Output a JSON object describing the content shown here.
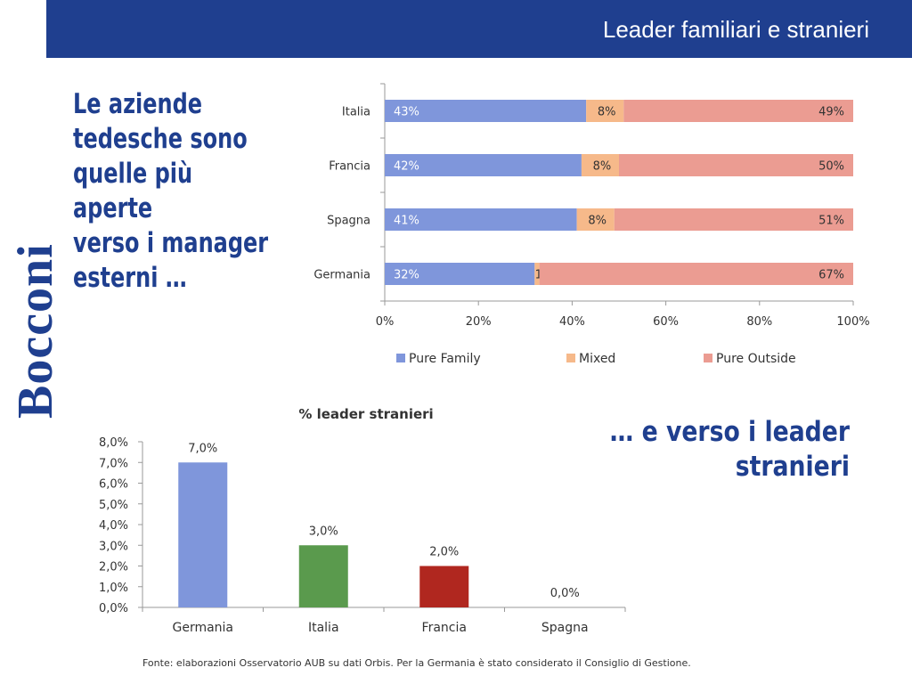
{
  "header": {
    "title": "Leader familiari e stranieri"
  },
  "brand": {
    "name": "Bocconi"
  },
  "headline": {
    "line1": "Le aziende",
    "line2": "tedesche sono",
    "line3": "quelle più aperte",
    "line4": "verso i manager",
    "line5": "esterni …"
  },
  "headline2": {
    "line1": "… e verso i leader",
    "line2": "stranieri"
  },
  "source": {
    "text": "Fonte: elaborazioni Osservatorio AUB su dati Orbis. Per la Germania è stato considerato il Consiglio di Gestione."
  },
  "colors": {
    "header": "#1f3f8f",
    "pure_family": "#7f96db",
    "mixed": "#f6b98a",
    "pure_outside": "#eb9c92",
    "germania": "#7f96db",
    "italia": "#5a9a4d",
    "francia": "#b0271f"
  },
  "chart_data": [
    {
      "type": "bar",
      "orientation": "horizontal",
      "stacked": true,
      "percent_stacked": true,
      "categories": [
        "Italia",
        "Francia",
        "Spagna",
        "Germania"
      ],
      "series": [
        {
          "name": "Pure Family",
          "values": [
            43,
            42,
            41,
            32
          ],
          "labels": [
            "43%",
            "42%",
            "41%",
            "32%"
          ]
        },
        {
          "name": "Mixed",
          "values": [
            8,
            8,
            8,
            1
          ],
          "labels": [
            "8%",
            "8%",
            "8%",
            "1%"
          ]
        },
        {
          "name": "Pure Outside",
          "values": [
            49,
            50,
            51,
            67
          ],
          "labels": [
            "49%",
            "50%",
            "51%",
            "67%"
          ]
        }
      ],
      "xlim": [
        0,
        100
      ],
      "xticks": [
        "0%",
        "20%",
        "40%",
        "60%",
        "80%",
        "100%"
      ],
      "legend": "bottom"
    },
    {
      "type": "bar",
      "title": "% leader stranieri",
      "categories": [
        "Germania",
        "Italia",
        "Francia",
        "Spagna"
      ],
      "values": [
        7.0,
        3.0,
        2.0,
        0.0
      ],
      "labels": [
        "7,0%",
        "3,0%",
        "2,0%",
        "0,0%"
      ],
      "ylim": [
        0,
        8
      ],
      "yticks": [
        "0,0%",
        "1,0%",
        "2,0%",
        "3,0%",
        "4,0%",
        "5,0%",
        "6,0%",
        "7,0%",
        "8,0%"
      ],
      "grid": false
    }
  ]
}
